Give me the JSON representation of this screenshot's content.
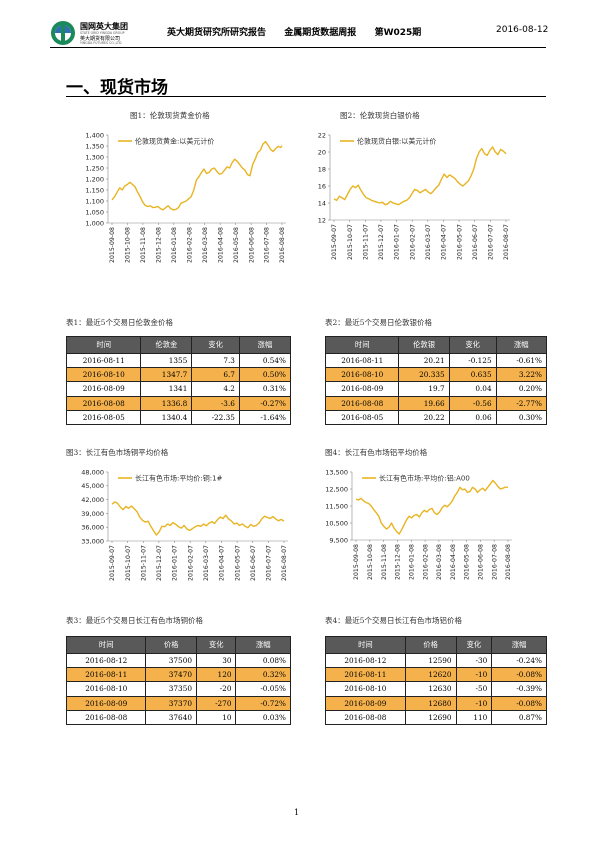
{
  "header": {
    "logo_cn": "国网英大集团",
    "logo_en": "STATE GRID YINGDA GROUP",
    "logo_sub": "英大期货有限公司",
    "logo_sub_en": "YINGDA FUTURES CO.,LTD",
    "title": "英大期货研究所研究报告",
    "report": "金属期货数据周报",
    "issue": "第W025期",
    "date": "2016-08-12"
  },
  "section": {
    "title": "一、现货市场"
  },
  "colors": {
    "line": "#e8b422",
    "highlight": "#f5b24c",
    "table_header": "#595959"
  },
  "figures": [
    {
      "caption": "图1：伦敦现货黄金价格"
    },
    {
      "caption": "图2：伦敦现货白银价格"
    },
    {
      "caption": "图3：长江有色市场铜平均价格"
    },
    {
      "caption": "图4：长江有色市场铝平均价格"
    }
  ],
  "chart_data": [
    {
      "type": "line",
      "series": [
        {
          "name": "伦敦现货黄金:以美元计价"
        }
      ],
      "x_ticks": [
        "2015-09-08",
        "2015-10-08",
        "2015-11-08",
        "2015-12-08",
        "2016-01-08",
        "2016-02-08",
        "2016-03-08",
        "2016-04-08",
        "2016-05-08",
        "2016-06-08",
        "2016-07-08",
        "2016-08-08"
      ],
      "y_ticks": [
        "1,400",
        "1,350",
        "1,300",
        "1,250",
        "1,200",
        "1,150",
        "1,100",
        "1,050",
        "1,000"
      ],
      "ylim": [
        1000,
        1400
      ],
      "points": [
        [
          0,
          1105
        ],
        [
          4,
          1120
        ],
        [
          8,
          1140
        ],
        [
          12,
          1160
        ],
        [
          16,
          1150
        ],
        [
          20,
          1168
        ],
        [
          24,
          1175
        ],
        [
          28,
          1185
        ],
        [
          32,
          1175
        ],
        [
          36,
          1165
        ],
        [
          40,
          1140
        ],
        [
          44,
          1120
        ],
        [
          48,
          1095
        ],
        [
          52,
          1080
        ],
        [
          56,
          1075
        ],
        [
          60,
          1078
        ],
        [
          64,
          1070
        ],
        [
          68,
          1072
        ],
        [
          72,
          1075
        ],
        [
          76,
          1065
        ],
        [
          80,
          1060
        ],
        [
          84,
          1070
        ],
        [
          88,
          1078
        ],
        [
          92,
          1065
        ],
        [
          96,
          1060
        ],
        [
          100,
          1062
        ],
        [
          104,
          1070
        ],
        [
          108,
          1090
        ],
        [
          112,
          1095
        ],
        [
          116,
          1100
        ],
        [
          120,
          1110
        ],
        [
          124,
          1120
        ],
        [
          128,
          1150
        ],
        [
          132,
          1195
        ],
        [
          136,
          1210
        ],
        [
          140,
          1230
        ],
        [
          144,
          1245
        ],
        [
          148,
          1225
        ],
        [
          152,
          1230
        ],
        [
          156,
          1245
        ],
        [
          160,
          1250
        ],
        [
          164,
          1235
        ],
        [
          168,
          1222
        ],
        [
          172,
          1225
        ],
        [
          176,
          1240
        ],
        [
          180,
          1255
        ],
        [
          184,
          1250
        ],
        [
          188,
          1275
        ],
        [
          192,
          1290
        ],
        [
          196,
          1280
        ],
        [
          200,
          1265
        ],
        [
          204,
          1250
        ],
        [
          208,
          1240
        ],
        [
          212,
          1220
        ],
        [
          216,
          1215
        ],
        [
          220,
          1265
        ],
        [
          224,
          1290
        ],
        [
          228,
          1320
        ],
        [
          232,
          1330
        ],
        [
          236,
          1358
        ],
        [
          240,
          1370
        ],
        [
          244,
          1355
        ],
        [
          248,
          1335
        ],
        [
          252,
          1325
        ],
        [
          256,
          1338
        ],
        [
          260,
          1348
        ],
        [
          264,
          1343
        ],
        [
          266,
          1352
        ]
      ]
    },
    {
      "type": "line",
      "series": [
        {
          "name": "伦敦现货白银:以美元计价"
        }
      ],
      "x_ticks": [
        "2015-09-07",
        "2015-10-07",
        "2015-11-07",
        "2015-12-07",
        "2016-01-07",
        "2016-02-07",
        "2016-03-07",
        "2016-04-07",
        "2016-05-07",
        "2016-06-07",
        "2016-07-07",
        "2016-08-07"
      ],
      "y_ticks": [
        "22",
        "20",
        "18",
        "16",
        "14",
        "12"
      ],
      "ylim": [
        12,
        22
      ],
      "points": [
        [
          0,
          14.5
        ],
        [
          4,
          14.3
        ],
        [
          8,
          14.8
        ],
        [
          12,
          14.6
        ],
        [
          16,
          14.4
        ],
        [
          20,
          15.0
        ],
        [
          24,
          15.6
        ],
        [
          28,
          16.0
        ],
        [
          32,
          15.8
        ],
        [
          36,
          16.1
        ],
        [
          40,
          15.5
        ],
        [
          44,
          15.0
        ],
        [
          48,
          14.6
        ],
        [
          52,
          14.5
        ],
        [
          56,
          14.3
        ],
        [
          60,
          14.2
        ],
        [
          64,
          14.1
        ],
        [
          68,
          14.0
        ],
        [
          72,
          14.1
        ],
        [
          76,
          13.8
        ],
        [
          80,
          13.9
        ],
        [
          84,
          14.2
        ],
        [
          88,
          14.0
        ],
        [
          92,
          13.9
        ],
        [
          96,
          13.8
        ],
        [
          100,
          14.0
        ],
        [
          104,
          14.2
        ],
        [
          108,
          14.3
        ],
        [
          112,
          14.6
        ],
        [
          116,
          15.1
        ],
        [
          120,
          15.6
        ],
        [
          124,
          15.5
        ],
        [
          128,
          15.2
        ],
        [
          132,
          15.4
        ],
        [
          136,
          15.6
        ],
        [
          140,
          15.3
        ],
        [
          144,
          15.1
        ],
        [
          148,
          15.4
        ],
        [
          152,
          15.8
        ],
        [
          156,
          16.1
        ],
        [
          160,
          16.8
        ],
        [
          164,
          17.4
        ],
        [
          168,
          17.0
        ],
        [
          172,
          17.3
        ],
        [
          176,
          17.1
        ],
        [
          180,
          16.9
        ],
        [
          184,
          16.5
        ],
        [
          188,
          16.2
        ],
        [
          192,
          16.0
        ],
        [
          196,
          16.3
        ],
        [
          200,
          16.6
        ],
        [
          204,
          17.2
        ],
        [
          208,
          18.0
        ],
        [
          212,
          19.2
        ],
        [
          216,
          20.0
        ],
        [
          220,
          20.4
        ],
        [
          224,
          19.8
        ],
        [
          228,
          19.6
        ],
        [
          232,
          20.2
        ],
        [
          236,
          20.6
        ],
        [
          240,
          20.0
        ],
        [
          244,
          19.7
        ],
        [
          248,
          20.3
        ],
        [
          252,
          20.1
        ],
        [
          256,
          19.8
        ]
      ]
    },
    {
      "type": "line",
      "series": [
        {
          "name": "长江有色市场:平均价:铜:1#"
        }
      ],
      "x_ticks": [
        "2015-09-07",
        "2015-10-07",
        "2015-11-07",
        "2015-12-07",
        "2016-01-07",
        "2016-02-07",
        "2016-03-07",
        "2016-04-07",
        "2016-05-07",
        "2016-06-07",
        "2016-07-07",
        "2016-08-07"
      ],
      "y_ticks": [
        "48,000",
        "45,000",
        "42,000",
        "39,000",
        "36,000",
        "33,000"
      ],
      "ylim": [
        33000,
        48000
      ],
      "points": [
        [
          0,
          41000
        ],
        [
          4,
          41500
        ],
        [
          8,
          41200
        ],
        [
          12,
          40400
        ],
        [
          16,
          39800
        ],
        [
          20,
          40500
        ],
        [
          24,
          40100
        ],
        [
          28,
          40600
        ],
        [
          32,
          40000
        ],
        [
          36,
          39400
        ],
        [
          40,
          38200
        ],
        [
          44,
          37500
        ],
        [
          48,
          37100
        ],
        [
          52,
          37300
        ],
        [
          56,
          36200
        ],
        [
          60,
          35200
        ],
        [
          64,
          34300
        ],
        [
          68,
          35000
        ],
        [
          72,
          36200
        ],
        [
          76,
          36100
        ],
        [
          80,
          36700
        ],
        [
          84,
          36400
        ],
        [
          88,
          37000
        ],
        [
          92,
          36600
        ],
        [
          96,
          36100
        ],
        [
          100,
          35800
        ],
        [
          104,
          36400
        ],
        [
          108,
          35600
        ],
        [
          112,
          35300
        ],
        [
          116,
          35700
        ],
        [
          120,
          36100
        ],
        [
          124,
          36400
        ],
        [
          128,
          36200
        ],
        [
          132,
          36700
        ],
        [
          136,
          36300
        ],
        [
          140,
          36900
        ],
        [
          144,
          37200
        ],
        [
          148,
          36800
        ],
        [
          152,
          37600
        ],
        [
          156,
          38200
        ],
        [
          160,
          37900
        ],
        [
          164,
          38600
        ],
        [
          168,
          37800
        ],
        [
          172,
          37400
        ],
        [
          176,
          36700
        ],
        [
          180,
          36900
        ],
        [
          184,
          36400
        ],
        [
          188,
          36700
        ],
        [
          192,
          36200
        ],
        [
          196,
          35900
        ],
        [
          200,
          36600
        ],
        [
          204,
          36200
        ],
        [
          208,
          36400
        ],
        [
          212,
          36900
        ],
        [
          216,
          37800
        ],
        [
          220,
          38400
        ],
        [
          224,
          38100
        ],
        [
          228,
          37900
        ],
        [
          232,
          38300
        ],
        [
          236,
          37800
        ],
        [
          240,
          37400
        ],
        [
          244,
          37700
        ],
        [
          248,
          37300
        ]
      ]
    },
    {
      "type": "line",
      "series": [
        {
          "name": "长江有色市场:平均价:铝:A00"
        }
      ],
      "x_ticks": [
        "2015-09-08",
        "2015-10-08",
        "2015-11-08",
        "2015-12-08",
        "2016-01-08",
        "2016-02-08",
        "2016-03-08",
        "2016-04-08",
        "2016-05-08",
        "2016-06-08",
        "2016-07-08",
        "2016-08-08"
      ],
      "y_ticks": [
        "13,500",
        "12,500",
        "11,500",
        "10,500",
        "9,500"
      ],
      "ylim": [
        9500,
        13500
      ],
      "points": [
        [
          0,
          11900
        ],
        [
          4,
          11850
        ],
        [
          8,
          11950
        ],
        [
          12,
          11800
        ],
        [
          16,
          11700
        ],
        [
          20,
          11650
        ],
        [
          24,
          11500
        ],
        [
          28,
          11300
        ],
        [
          32,
          11100
        ],
        [
          36,
          10900
        ],
        [
          40,
          10500
        ],
        [
          44,
          10300
        ],
        [
          48,
          10150
        ],
        [
          52,
          10250
        ],
        [
          56,
          10500
        ],
        [
          60,
          10200
        ],
        [
          64,
          10000
        ],
        [
          68,
          9850
        ],
        [
          72,
          10100
        ],
        [
          76,
          10400
        ],
        [
          80,
          10700
        ],
        [
          84,
          10900
        ],
        [
          88,
          10800
        ],
        [
          92,
          10950
        ],
        [
          96,
          11000
        ],
        [
          100,
          10850
        ],
        [
          104,
          11100
        ],
        [
          108,
          11250
        ],
        [
          112,
          11150
        ],
        [
          116,
          11300
        ],
        [
          120,
          11350
        ],
        [
          124,
          11100
        ],
        [
          128,
          11000
        ],
        [
          132,
          11150
        ],
        [
          136,
          11400
        ],
        [
          140,
          11550
        ],
        [
          144,
          11450
        ],
        [
          148,
          11600
        ],
        [
          152,
          11800
        ],
        [
          156,
          12100
        ],
        [
          160,
          12300
        ],
        [
          164,
          12600
        ],
        [
          168,
          12450
        ],
        [
          172,
          12500
        ],
        [
          176,
          12300
        ],
        [
          180,
          12350
        ],
        [
          184,
          12600
        ],
        [
          188,
          12500
        ],
        [
          192,
          12300
        ],
        [
          196,
          12450
        ],
        [
          200,
          12550
        ],
        [
          204,
          12400
        ],
        [
          208,
          12600
        ],
        [
          212,
          12800
        ],
        [
          216,
          13000
        ],
        [
          220,
          12850
        ],
        [
          224,
          12650
        ],
        [
          228,
          12500
        ],
        [
          232,
          12550
        ],
        [
          236,
          12620
        ],
        [
          240,
          12590
        ]
      ]
    }
  ],
  "tables": [
    {
      "caption": "表1：最近5个交易日伦敦金价格",
      "headers": [
        "时间",
        "伦敦金",
        "变化",
        "涨幅"
      ],
      "rows": [
        [
          "2016-08-11",
          "1355",
          "7.3",
          "0.54%"
        ],
        [
          "2016-08-10",
          "1347.7",
          "6.7",
          "0.50%"
        ],
        [
          "2016-08-09",
          "1341",
          "4.2",
          "0.31%"
        ],
        [
          "2016-08-08",
          "1336.8",
          "-3.6",
          "-0.27%"
        ],
        [
          "2016-08-05",
          "1340.4",
          "-22.35",
          "-1.64%"
        ]
      ]
    },
    {
      "caption": "表2：最近5个交易日伦敦银价格",
      "headers": [
        "时间",
        "伦敦银",
        "变化",
        "涨幅"
      ],
      "rows": [
        [
          "2016-08-11",
          "20.21",
          "-0.125",
          "-0.61%"
        ],
        [
          "2016-08-10",
          "20.335",
          "0.635",
          "3.22%"
        ],
        [
          "2016-08-09",
          "19.7",
          "0.04",
          "0.20%"
        ],
        [
          "2016-08-08",
          "19.66",
          "-0.56",
          "-2.77%"
        ],
        [
          "2016-08-05",
          "20.22",
          "0.06",
          "0.30%"
        ]
      ]
    },
    {
      "caption": "表3：最近5个交易日长江有色市场铜价格",
      "headers": [
        "时间",
        "价格",
        "变化",
        "涨幅"
      ],
      "rows": [
        [
          "2016-08-12",
          "37500",
          "30",
          "0.08%"
        ],
        [
          "2016-08-11",
          "37470",
          "120",
          "0.32%"
        ],
        [
          "2016-08-10",
          "37350",
          "-20",
          "-0.05%"
        ],
        [
          "2016-08-09",
          "37370",
          "-270",
          "-0.72%"
        ],
        [
          "2016-08-08",
          "37640",
          "10",
          "0.03%"
        ]
      ]
    },
    {
      "caption": "表4：最近5个交易日长江有色市场铝价格",
      "headers": [
        "时间",
        "价格",
        "变化",
        "涨幅"
      ],
      "rows": [
        [
          "2016-08-12",
          "12590",
          "-30",
          "-0.24%"
        ],
        [
          "2016-08-11",
          "12620",
          "-10",
          "-0.08%"
        ],
        [
          "2016-08-10",
          "12630",
          "-50",
          "-0.39%"
        ],
        [
          "2016-08-09",
          "12680",
          "-10",
          "-0.08%"
        ],
        [
          "2016-08-08",
          "12690",
          "110",
          "0.87%"
        ]
      ]
    }
  ],
  "footer": {
    "page": "1"
  }
}
